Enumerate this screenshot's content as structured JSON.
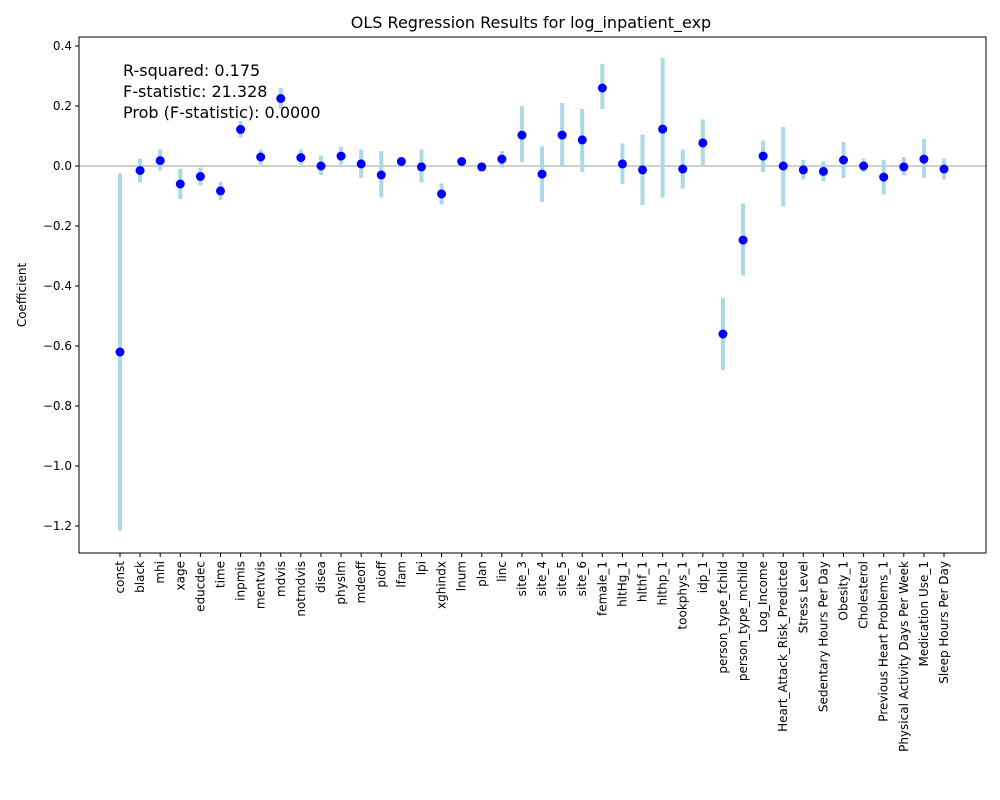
{
  "chart_data": {
    "type": "scatter",
    "title": "OLS Regression Results for log_inpatient_exp",
    "xlabel": "",
    "ylabel": "Coefficient",
    "ylim": [
      -1.29,
      0.43
    ],
    "yticks": [
      0.4,
      0.2,
      0.0,
      -0.2,
      -0.4,
      -0.6,
      -0.8,
      -1.0,
      -1.2
    ],
    "ytick_labels": [
      "0.4",
      "0.2",
      "0.0",
      "−0.2",
      "−0.4",
      "−0.6",
      "−0.8",
      "−1.0",
      "−1.2"
    ],
    "reference_line_y": 0,
    "grid": false,
    "point_color": "#0000ff",
    "errorbar_color": "#add8e6",
    "reference_line_color": "#808080",
    "annotations": [
      "R-squared: 0.175",
      "F-statistic: 21.328",
      "Prob (F-statistic): 0.0000"
    ],
    "categories": [
      "const",
      "black",
      "mhi",
      "xage",
      "educdec",
      "time",
      "inpmis",
      "mentvis",
      "mdvis",
      "notmdvis",
      "disea",
      "physlm",
      "mdeoff",
      "pioff",
      "lfam",
      "lpi",
      "xghindx",
      "lnum",
      "plan",
      "linc",
      "site_3",
      "site_4",
      "site_5",
      "site_6",
      "female_1",
      "hltHg_1",
      "hlthf_1",
      "hlthp_1",
      "tookphys_1",
      "idp_1",
      "person_type_fchild",
      "person_type_mchild",
      "Log_Income",
      "Heart_Attack_Risk_Predicted",
      "Stress Level",
      "Sedentary Hours Per Day",
      "Obesity_1",
      "Cholesterol",
      "Previous Heart Problems_1",
      "Physical Activity Days Per Week",
      "Medication Use_1",
      "Sleep Hours Per Day"
    ],
    "values": [
      -0.62,
      -0.015,
      0.018,
      -0.06,
      -0.035,
      -0.083,
      0.122,
      0.03,
      0.225,
      0.028,
      0.0,
      0.033,
      0.007,
      -0.03,
      0.015,
      -0.003,
      -0.093,
      0.015,
      -0.003,
      0.023,
      0.103,
      -0.027,
      0.103,
      0.087,
      0.26,
      0.007,
      -0.013,
      0.123,
      -0.01,
      0.077,
      -0.56,
      -0.247,
      0.033,
      0.0,
      -0.013,
      -0.018,
      0.02,
      0.0,
      -0.037,
      -0.003,
      0.023,
      -0.01
    ],
    "ci_lower": [
      -1.215,
      -0.055,
      -0.015,
      -0.11,
      -0.065,
      -0.113,
      0.095,
      0.005,
      0.19,
      0.005,
      -0.03,
      0.005,
      -0.04,
      -0.105,
      0.005,
      -0.055,
      -0.128,
      0.005,
      -0.008,
      -0.005,
      0.013,
      -0.12,
      0.0,
      -0.02,
      0.19,
      -0.06,
      -0.13,
      -0.105,
      -0.075,
      0.0,
      -0.68,
      -0.365,
      -0.02,
      -0.135,
      -0.045,
      -0.05,
      -0.04,
      -0.02,
      -0.095,
      -0.03,
      -0.04,
      -0.045
    ],
    "ci_upper": [
      -0.025,
      0.025,
      0.055,
      -0.01,
      -0.005,
      -0.053,
      0.15,
      0.055,
      0.26,
      0.055,
      0.035,
      0.065,
      0.055,
      0.05,
      0.025,
      0.055,
      -0.058,
      0.025,
      0.002,
      0.05,
      0.2,
      0.065,
      0.21,
      0.19,
      0.34,
      0.075,
      0.105,
      0.36,
      0.055,
      0.155,
      -0.44,
      -0.125,
      0.085,
      0.13,
      0.02,
      0.015,
      0.08,
      0.025,
      0.02,
      0.03,
      0.09,
      0.025
    ]
  }
}
